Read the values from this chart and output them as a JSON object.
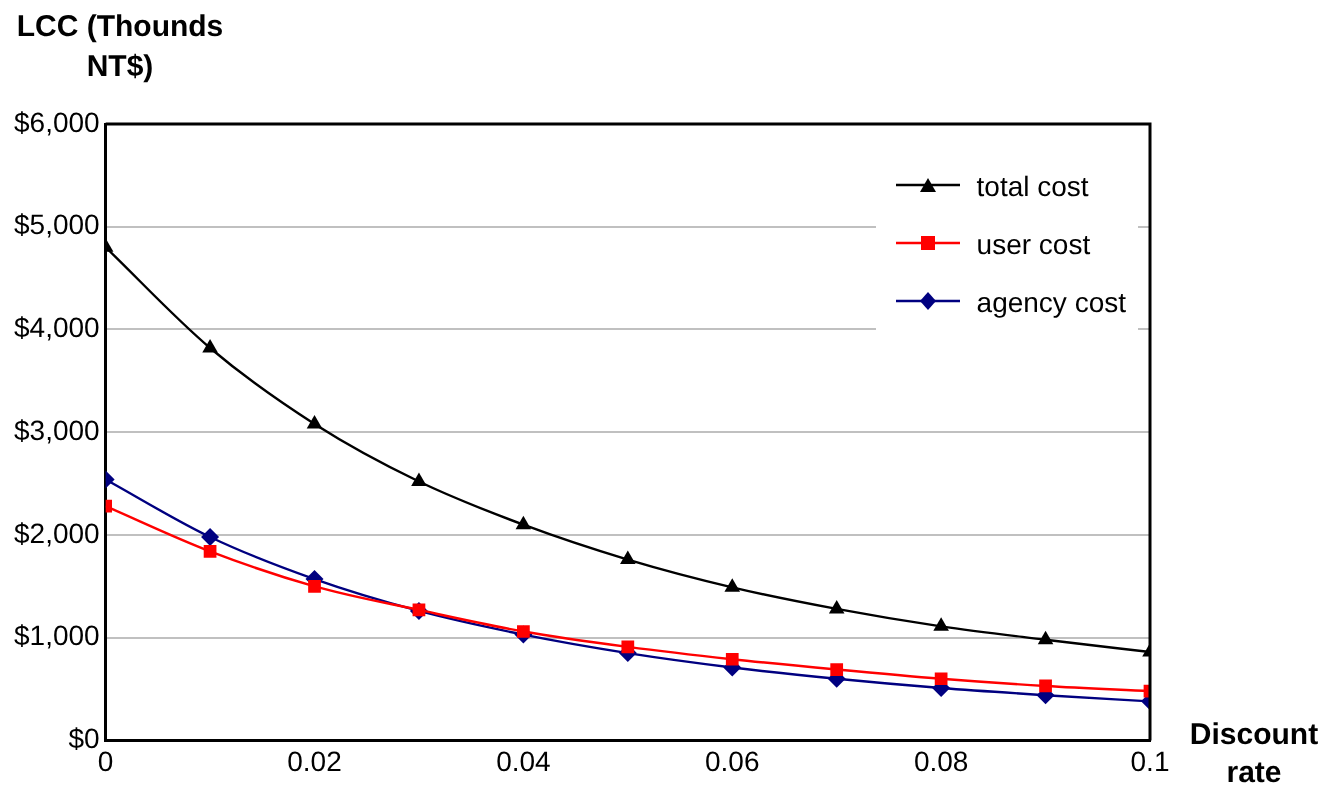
{
  "chart_data": {
    "type": "line",
    "xlabel": "Discount rate",
    "ylabel": "LCC (Thounds NT$)",
    "x": [
      0,
      0.01,
      0.02,
      0.03,
      0.04,
      0.05,
      0.06,
      0.07,
      0.08,
      0.09,
      0.1
    ],
    "series": [
      {
        "name": "total cost",
        "color": "#000000",
        "marker": "triangle",
        "values": [
          4800,
          3820,
          3080,
          2520,
          2100,
          1760,
          1490,
          1280,
          1110,
          980,
          860
        ]
      },
      {
        "name": "user cost",
        "color": "#ff0000",
        "marker": "square",
        "values": [
          2280,
          1840,
          1500,
          1270,
          1060,
          910,
          790,
          690,
          600,
          530,
          480
        ]
      },
      {
        "name": "agency cost",
        "color": "#000080",
        "marker": "diamond",
        "values": [
          2540,
          1980,
          1570,
          1260,
          1030,
          850,
          710,
          600,
          510,
          440,
          380
        ]
      }
    ],
    "xlim": [
      0,
      0.1
    ],
    "xticks": [
      0,
      0.02,
      0.04,
      0.06,
      0.08,
      0.1
    ],
    "ylim": [
      0,
      6000
    ],
    "yticks": [
      {
        "value": 0,
        "label": "$0"
      },
      {
        "value": 1000,
        "label": "$1,000"
      },
      {
        "value": 2000,
        "label": "$2,000"
      },
      {
        "value": 3000,
        "label": "$3,000"
      },
      {
        "value": 4000,
        "label": "$4,000"
      },
      {
        "value": 5000,
        "label": "$5,000"
      },
      {
        "value": 6000,
        "label": "$6,000"
      }
    ],
    "grid": "y",
    "legend": "top right",
    "line_style": "solid"
  }
}
